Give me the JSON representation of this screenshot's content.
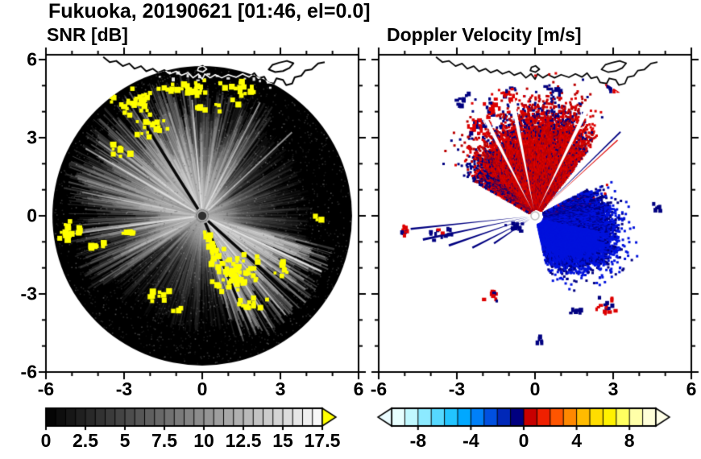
{
  "figure_title": "Fukuoka, 20190621 [01:46, el=0.0]",
  "station": "Fukuoka",
  "date": "20190621",
  "time": "01:46",
  "elevation_deg": "0.0",
  "chart_data": [
    {
      "type": "heatmap",
      "plot_style": "radar_ppi",
      "title": "SNR [dB]",
      "units": "dB",
      "xlabel": "",
      "ylabel": "",
      "xlim": [
        -6,
        6
      ],
      "ylim": [
        -6,
        6
      ],
      "xticks": [
        -6,
        -3,
        0,
        3,
        6
      ],
      "yticks": [
        -6,
        -3,
        0,
        3,
        6
      ],
      "minor_tick_step": 1,
      "radar_radius": 5.75,
      "background": "#000000",
      "clutter_color": "#ffff00",
      "colorbar": {
        "min": 0,
        "max": 17.5,
        "segment_step": 0.625,
        "label_values": [
          "0",
          "2.5",
          "5",
          "7.5",
          "10",
          "12.5",
          "15",
          "17.5"
        ],
        "colormap": "grayscale-black-to-white",
        "overflow_arrow_color": "#ffff00"
      },
      "bright_sectors": [
        {
          "az": [
            95,
            172
          ],
          "strength": 0.5,
          "maxr": 5.6
        },
        {
          "az": [
            283,
            347
          ],
          "strength": 0.75,
          "maxr": 5.3
        },
        {
          "az": [
            55,
            95
          ],
          "strength": 0.3,
          "maxr": 5.0
        },
        {
          "az": [
            172,
            215
          ],
          "strength": 0.33,
          "maxr": 5.2
        },
        {
          "az": [
            215,
            283
          ],
          "strength": 0.12,
          "maxr": 4.5
        },
        {
          "az": [
            347,
            415
          ],
          "strength": 0.12,
          "maxr": 4.2
        }
      ],
      "black_rays_deg": [
        318,
        293,
        122
      ],
      "bright_rays_deg": [
        150,
        95,
        63,
        188,
        310,
        335,
        43
      ],
      "clutter_clusters": [
        {
          "x": -2.6,
          "y": 4.6,
          "sx": 1.2,
          "sy": 0.75,
          "n": 34
        },
        {
          "x": -0.5,
          "y": 5.0,
          "sx": 1.3,
          "sy": 0.45,
          "n": 26
        },
        {
          "x": 1.4,
          "y": 4.8,
          "sx": 0.8,
          "sy": 0.6,
          "n": 16
        },
        {
          "x": -2.0,
          "y": 3.5,
          "sx": 1.0,
          "sy": 0.5,
          "n": 18
        },
        {
          "x": -3.3,
          "y": 2.6,
          "sx": 0.5,
          "sy": 0.5,
          "n": 8
        },
        {
          "x": 0.3,
          "y": 4.2,
          "sx": 0.7,
          "sy": 0.4,
          "n": 8
        },
        {
          "x": -5.15,
          "y": -0.5,
          "sx": 0.5,
          "sy": 0.4,
          "n": 20
        },
        {
          "x": -4.2,
          "y": -1.05,
          "sx": 0.4,
          "sy": 0.3,
          "n": 7
        },
        {
          "x": -3.1,
          "y": -0.6,
          "sx": 0.5,
          "sy": 0.25,
          "n": 7
        },
        {
          "x": 1.2,
          "y": -2.1,
          "sx": 1.0,
          "sy": 0.85,
          "n": 60
        },
        {
          "x": 0.35,
          "y": -1.3,
          "sx": 0.45,
          "sy": 0.45,
          "n": 14
        },
        {
          "x": 1.8,
          "y": -3.3,
          "sx": 0.7,
          "sy": 0.35,
          "n": 12
        },
        {
          "x": 2.9,
          "y": -2.0,
          "sx": 0.4,
          "sy": 0.35,
          "n": 7
        },
        {
          "x": -1.75,
          "y": -2.9,
          "sx": 0.45,
          "sy": 0.4,
          "n": 9
        },
        {
          "x": -1.0,
          "y": -3.55,
          "sx": 0.25,
          "sy": 0.2,
          "n": 4
        },
        {
          "x": 0.15,
          "y": -0.8,
          "sx": 0.3,
          "sy": 0.25,
          "n": 6
        },
        {
          "x": 4.35,
          "y": -0.05,
          "sx": 0.2,
          "sy": 0.15,
          "n": 3
        }
      ]
    },
    {
      "type": "heatmap",
      "plot_style": "radar_ppi",
      "title": "Doppler Velocity [m/s]",
      "units": "m/s",
      "xlabel": "",
      "ylabel": "",
      "xlim": [
        -6,
        6
      ],
      "ylim": [
        -6,
        6
      ],
      "xticks": [
        -6,
        -3,
        0,
        3,
        6
      ],
      "yticks": [
        -6,
        -3,
        0,
        3,
        6
      ],
      "minor_tick_step": 1,
      "radar_radius": 5.75,
      "background": "#ffffff",
      "colors": {
        "red": "#dd0000",
        "red2": "#bb0000",
        "navy": "#000080",
        "blue": "#0013dd"
      },
      "colorbar": {
        "min": -10,
        "max": 10,
        "segment_step": 1,
        "label_values": [
          "-8",
          "-4",
          "0",
          "4",
          "8"
        ],
        "segment_colors": [
          "#e8ffff",
          "#c0f8ff",
          "#8ceaff",
          "#55d8ff",
          "#22c4ff",
          "#00a8ff",
          "#0080f8",
          "#0050e0",
          "#0028b8",
          "#000080",
          "#c80000",
          "#f02000",
          "#ff5500",
          "#ff8800",
          "#ffbb00",
          "#ffdd00",
          "#fff200",
          "#ffff60",
          "#ffffa8",
          "#ffffd8"
        ],
        "left_arrow_color": "#eafcff",
        "right_arrow_color": "#ffffe8"
      },
      "red_fan": {
        "az": [
          52,
          150
        ],
        "density": 0.8,
        "profile": [
          [
            52,
            3.6
          ],
          [
            70,
            4.4
          ],
          [
            95,
            4.3
          ],
          [
            120,
            3.8
          ],
          [
            150,
            2.9
          ]
        ]
      },
      "blue_fan": {
        "az": [
          -78,
          28
        ],
        "density": 0.93,
        "profile": [
          [
            -78,
            1.7
          ],
          [
            -45,
            2.8
          ],
          [
            -25,
            3.3
          ],
          [
            0,
            3.0
          ],
          [
            15,
            2.7
          ],
          [
            28,
            2.2
          ]
        ]
      },
      "white_rays_deg": [
        64,
        101,
        117
      ],
      "streaks": [
        {
          "az": 186,
          "len": 4.8,
          "w": 0.5,
          "color": "navy"
        },
        {
          "az": 192,
          "len": 4.4,
          "w": 0.6,
          "color": "navy"
        },
        {
          "az": 199,
          "len": 3.5,
          "w": 0.7,
          "color": "navy"
        },
        {
          "az": 207,
          "len": 2.7,
          "w": 0.9,
          "color": "navy"
        },
        {
          "az": 214,
          "len": 1.9,
          "w": 1.1,
          "color": "navy"
        },
        {
          "az": 44.5,
          "len": 4.6,
          "w": 0.35,
          "color": "navy"
        },
        {
          "az": 42.5,
          "len": 4.3,
          "w": 0.3,
          "color": "red"
        }
      ],
      "clusters": [
        {
          "x": -2.4,
          "y": 3.5,
          "sx": 0.5,
          "sy": 0.4,
          "n": 26,
          "colors": [
            "navy",
            "red",
            "red"
          ]
        },
        {
          "x": -1.7,
          "y": 4.2,
          "sx": 0.4,
          "sy": 0.4,
          "n": 18,
          "colors": [
            "navy",
            "red"
          ]
        },
        {
          "x": -2.9,
          "y": 4.5,
          "sx": 0.3,
          "sy": 0.3,
          "n": 10,
          "colors": [
            "navy"
          ]
        },
        {
          "x": -1.1,
          "y": 4.8,
          "sx": 0.35,
          "sy": 0.3,
          "n": 10,
          "colors": [
            "navy",
            "red"
          ]
        },
        {
          "x": 0.6,
          "y": 4.9,
          "sx": 0.5,
          "sy": 0.3,
          "n": 9,
          "colors": [
            "navy"
          ]
        },
        {
          "x": 2.9,
          "y": 5.0,
          "sx": 0.5,
          "sy": 0.35,
          "n": 14,
          "colors": [
            "navy",
            "red"
          ]
        },
        {
          "x": 3.6,
          "y": 5.4,
          "sx": 0.4,
          "sy": 0.3,
          "n": 9,
          "colors": [
            "navy"
          ]
        },
        {
          "x": 4.6,
          "y": 0.35,
          "sx": 0.25,
          "sy": 0.2,
          "n": 6,
          "colors": [
            "navy"
          ]
        },
        {
          "x": 2.6,
          "y": -3.4,
          "sx": 0.45,
          "sy": 0.35,
          "n": 16,
          "colors": [
            "navy",
            "red"
          ]
        },
        {
          "x": 1.5,
          "y": -3.6,
          "sx": 0.3,
          "sy": 0.2,
          "n": 6,
          "colors": [
            "navy"
          ]
        },
        {
          "x": 0.2,
          "y": -4.7,
          "sx": 0.25,
          "sy": 0.18,
          "n": 5,
          "colors": [
            "navy"
          ]
        },
        {
          "x": -1.8,
          "y": -2.95,
          "sx": 0.4,
          "sy": 0.3,
          "n": 10,
          "colors": [
            "navy",
            "red"
          ]
        },
        {
          "x": -3.6,
          "y": -0.65,
          "sx": 0.55,
          "sy": 0.25,
          "n": 14,
          "colors": [
            "navy",
            "red"
          ]
        },
        {
          "x": -5.15,
          "y": -0.5,
          "sx": 0.35,
          "sy": 0.25,
          "n": 10,
          "colors": [
            "red",
            "navy"
          ]
        },
        {
          "x": -0.85,
          "y": -0.35,
          "sx": 0.35,
          "sy": 0.2,
          "n": 10,
          "colors": [
            "navy"
          ]
        }
      ]
    }
  ],
  "coastline": {
    "mainland": [
      [
        -3.8,
        6.1
      ],
      [
        -3.55,
        5.9
      ],
      [
        -3.3,
        5.95
      ],
      [
        -3.05,
        5.75
      ],
      [
        -2.8,
        5.85
      ],
      [
        -2.6,
        5.65
      ],
      [
        -2.35,
        5.75
      ],
      [
        -2.15,
        5.55
      ],
      [
        -1.9,
        5.65
      ],
      [
        -1.7,
        5.5
      ],
      [
        -1.45,
        5.6
      ],
      [
        -1.25,
        5.45
      ],
      [
        -1.0,
        5.55
      ],
      [
        -0.8,
        5.4
      ],
      [
        -0.55,
        5.5
      ],
      [
        -0.35,
        5.3
      ],
      [
        -0.15,
        5.45
      ],
      [
        0.0,
        5.25
      ],
      [
        0.1,
        5.45
      ],
      [
        0.3,
        5.3
      ],
      [
        0.5,
        5.42
      ],
      [
        0.75,
        5.3
      ],
      [
        1.0,
        5.42
      ],
      [
        1.3,
        5.32
      ],
      [
        1.55,
        5.45
      ],
      [
        1.8,
        5.33
      ],
      [
        2.0,
        5.48
      ],
      [
        2.15,
        5.28
      ],
      [
        2.38,
        5.34
      ],
      [
        2.5,
        5.12
      ],
      [
        2.75,
        5.08
      ],
      [
        2.85,
        5.28
      ],
      [
        3.1,
        5.22
      ],
      [
        3.22,
        5.02
      ],
      [
        3.45,
        5.08
      ],
      [
        3.55,
        5.32
      ],
      [
        3.8,
        5.38
      ],
      [
        3.95,
        5.58
      ],
      [
        4.2,
        5.62
      ],
      [
        4.45,
        5.85
      ],
      [
        4.7,
        5.9
      ]
    ],
    "island": [
      [
        2.55,
        5.62
      ],
      [
        2.8,
        5.52
      ],
      [
        3.1,
        5.56
      ],
      [
        3.35,
        5.68
      ],
      [
        3.5,
        5.86
      ],
      [
        3.25,
        5.95
      ],
      [
        2.95,
        5.88
      ],
      [
        2.7,
        5.8
      ]
    ],
    "islet": [
      [
        -0.18,
        5.58
      ],
      [
        0.02,
        5.52
      ],
      [
        0.17,
        5.63
      ],
      [
        0.02,
        5.76
      ],
      [
        -0.14,
        5.7
      ]
    ]
  }
}
